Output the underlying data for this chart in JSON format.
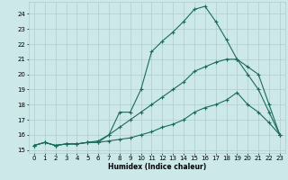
{
  "xlabel": "Humidex (Indice chaleur)",
  "bg_color": "#cde8e8",
  "grid_color": "#b0cccc",
  "line_color": "#1a6b5a",
  "xlim": [
    -0.5,
    23.5
  ],
  "ylim": [
    14.8,
    24.8
  ],
  "xticks": [
    0,
    1,
    2,
    3,
    4,
    5,
    6,
    7,
    8,
    9,
    10,
    11,
    12,
    13,
    14,
    15,
    16,
    17,
    18,
    19,
    20,
    21,
    22,
    23
  ],
  "yticks": [
    15,
    16,
    17,
    18,
    19,
    20,
    21,
    22,
    23,
    24
  ],
  "line1_x": [
    0,
    1,
    2,
    3,
    4,
    5,
    6,
    7,
    8,
    9,
    10,
    11,
    12,
    13,
    14,
    15,
    16,
    17,
    18,
    19,
    20,
    21,
    22,
    23
  ],
  "line1_y": [
    15.3,
    15.5,
    15.3,
    15.4,
    15.4,
    15.5,
    15.5,
    15.6,
    15.7,
    15.8,
    16.0,
    16.2,
    16.5,
    16.7,
    17.0,
    17.5,
    17.8,
    18.0,
    18.3,
    18.8,
    18.0,
    17.5,
    16.8,
    16.0
  ],
  "line2_x": [
    0,
    1,
    2,
    3,
    4,
    5,
    6,
    7,
    8,
    9,
    10,
    11,
    12,
    13,
    14,
    15,
    16,
    17,
    18,
    19,
    20,
    21,
    22,
    23
  ],
  "line2_y": [
    15.3,
    15.5,
    15.3,
    15.4,
    15.4,
    15.5,
    15.6,
    16.0,
    16.5,
    17.0,
    17.5,
    18.0,
    18.5,
    19.0,
    19.5,
    20.2,
    20.5,
    20.8,
    21.0,
    21.0,
    20.5,
    20.0,
    18.0,
    16.0
  ],
  "line3_x": [
    0,
    1,
    2,
    3,
    4,
    5,
    6,
    7,
    8,
    9,
    10,
    11,
    12,
    13,
    14,
    15,
    16,
    17,
    18,
    19,
    20,
    21,
    22,
    23
  ],
  "line3_y": [
    15.3,
    15.5,
    15.3,
    15.4,
    15.4,
    15.5,
    15.5,
    16.0,
    17.5,
    17.5,
    19.0,
    21.5,
    22.2,
    22.8,
    23.5,
    24.3,
    24.5,
    23.5,
    22.3,
    21.0,
    20.0,
    19.0,
    17.5,
    16.0
  ]
}
